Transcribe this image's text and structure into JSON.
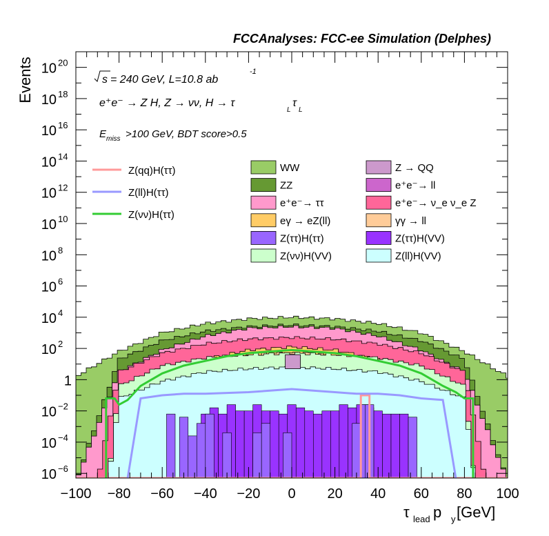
{
  "chart_data": {
    "type": "stacked-histogram",
    "title": "FCCAnalyses: FCC-ee Simulation (Delphes)",
    "annotations": {
      "energy_lumi_prefix": "s",
      "energy_lumi": " = 240 GeV, L=10.8 ab",
      "lumi_exponent": "-1",
      "process_line": "e⁺e⁻ → Z H, Z → νν, H → τ",
      "process_sub1": "L",
      "process_tau2": "τ",
      "process_sub2": "L",
      "cut_E": "E",
      "cut_sub": "miss",
      "cut_rest": ">100 GeV, BDT score>0.5"
    },
    "xlabel_main": "τ",
    "xlabel_sub": "lead",
    "xlabel_rest": " p",
    "xlabel_sub2": "y",
    "xlabel_unit": " [GeV]",
    "ylabel": "Events",
    "xlim": [
      -100,
      100
    ],
    "ylim_log10": [
      -6.3,
      21
    ],
    "log_y": true,
    "x_ticks": [
      -100,
      -80,
      -60,
      -40,
      -20,
      0,
      20,
      40,
      60,
      80,
      100
    ],
    "x_tick_labels": [
      "−100",
      "−80",
      "−60",
      "−40",
      "−20",
      "0",
      "20",
      "40",
      "60",
      "80",
      "100"
    ],
    "y_ticks": [
      {
        "exp": -6,
        "base": "10",
        "sup": "−6"
      },
      {
        "exp": -4,
        "base": "10",
        "sup": "−4"
      },
      {
        "exp": -2,
        "base": "10",
        "sup": "−2"
      },
      {
        "exp": 0,
        "base": "1",
        "sup": ""
      },
      {
        "exp": 2,
        "base": "10",
        "sup": "2"
      },
      {
        "exp": 4,
        "base": "10",
        "sup": "4"
      },
      {
        "exp": 6,
        "base": "10",
        "sup": "6"
      },
      {
        "exp": 8,
        "base": "10",
        "sup": "8"
      },
      {
        "exp": 10,
        "base": "10",
        "sup": "10"
      },
      {
        "exp": 12,
        "base": "10",
        "sup": "12"
      },
      {
        "exp": 14,
        "base": "10",
        "sup": "14"
      },
      {
        "exp": 16,
        "base": "10",
        "sup": "16"
      },
      {
        "exp": 18,
        "base": "10",
        "sup": "18"
      },
      {
        "exp": 20,
        "base": "10",
        "sup": "20"
      }
    ],
    "stack_layers": [
      {
        "name": "WW",
        "color": "#99cc66",
        "x": [
          -100,
          -80,
          -60,
          -40,
          -20,
          0,
          20,
          40,
          60,
          80,
          100
        ],
        "log10": [
          0.2,
          1.8,
          3.0,
          3.6,
          3.9,
          4.0,
          3.9,
          3.6,
          3.0,
          1.8,
          0.2
        ]
      },
      {
        "name": "ZZ",
        "color": "#669933",
        "x": [
          -100,
          -80,
          -60,
          -40,
          -20,
          0,
          20,
          40,
          60,
          80,
          100
        ],
        "log10": [
          -6.5,
          1.3,
          2.5,
          3.1,
          3.4,
          3.5,
          3.4,
          3.1,
          2.5,
          1.3,
          -6.5
        ]
      },
      {
        "name": "e⁺e⁻→ ττ",
        "color": "#ff99cc",
        "x": [
          -100,
          -80,
          -60,
          -40,
          -20,
          0,
          20,
          40,
          60,
          80,
          100
        ],
        "log10": [
          -6.5,
          0.5,
          1.9,
          2.8,
          3.3,
          3.4,
          3.3,
          2.8,
          1.9,
          0.5,
          -6.5
        ]
      },
      {
        "name": "e⁺e⁻→ ν_e ν_e Z",
        "color": "#ff6699",
        "x": [
          -90,
          -80,
          -60,
          -40,
          -20,
          0,
          20,
          40,
          60,
          80,
          90
        ],
        "log10": [
          -6.5,
          0.5,
          1.7,
          2.3,
          2.6,
          2.7,
          2.6,
          2.3,
          1.7,
          0.5,
          -6.5
        ]
      },
      {
        "name": "eγ → eZ(ll)",
        "color": "#ffcc66",
        "x": [
          -60,
          -40,
          -20,
          0,
          20,
          40,
          60
        ],
        "log10": [
          -6.5,
          1.3,
          1.9,
          2.1,
          1.9,
          1.3,
          -6.5
        ]
      },
      {
        "name": "γγ → ll",
        "color": "#ffcc99",
        "x": [
          -50,
          -30,
          -10,
          0,
          10,
          30,
          50
        ],
        "log10": [
          -6.5,
          1.3,
          1.7,
          1.7,
          1.7,
          1.3,
          -6.5
        ]
      },
      {
        "name": "Z(νν)H(VV)",
        "color": "#ccffcc",
        "x": [
          -85,
          -80,
          -60,
          -40,
          -20,
          0,
          20,
          40,
          60,
          80,
          85
        ],
        "log10": [
          -6.5,
          -0.4,
          0.9,
          1.4,
          1.6,
          1.7,
          1.6,
          1.4,
          0.9,
          -0.4,
          -6.5
        ]
      },
      {
        "name": "Z(ll)H(VV)",
        "color": "#ccffff",
        "x": [
          -85,
          -80,
          -60,
          -40,
          -20,
          0,
          20,
          40,
          60,
          80,
          85
        ],
        "log10": [
          -6.5,
          -1.2,
          -0.1,
          0.5,
          0.7,
          0.8,
          0.7,
          0.5,
          -0.1,
          -1.2,
          -6.5
        ]
      }
    ],
    "zqq_bar": {
      "name": "Z → QQ",
      "color": "#cc99cc",
      "x0": -3,
      "x1": 4,
      "log10_top": 1.6,
      "log10_bottom": 0.7
    },
    "ztautau_vv_bars": {
      "name": "Z(ττ)H(VV)",
      "color": "#9933ff",
      "bars": [
        [
          -42,
          -38,
          -2.2
        ],
        [
          -38,
          -34,
          -1.8
        ],
        [
          -34,
          -30,
          -2.2
        ],
        [
          -30,
          -26,
          -1.6
        ],
        [
          -26,
          -22,
          -2.0
        ],
        [
          -22,
          -18,
          -2.0
        ],
        [
          -18,
          -14,
          -1.6
        ],
        [
          -14,
          -10,
          -2.0
        ],
        [
          -10,
          -6,
          -2.0
        ],
        [
          -6,
          -2,
          -2.2
        ],
        [
          -2,
          2,
          -1.6
        ],
        [
          2,
          6,
          -1.8
        ],
        [
          6,
          10,
          -2.0
        ],
        [
          10,
          14,
          -2.2
        ],
        [
          14,
          18,
          -2.0
        ],
        [
          18,
          22,
          -2.0
        ],
        [
          22,
          26,
          -1.6
        ],
        [
          26,
          30,
          -1.8
        ],
        [
          30,
          34,
          -1.6
        ],
        [
          34,
          38,
          -1.8
        ],
        [
          38,
          42,
          -2.0
        ],
        [
          42,
          46,
          -2.2
        ],
        [
          46,
          50,
          -2.2
        ],
        [
          50,
          54,
          -2.2
        ]
      ]
    },
    "ztautau_tt_bars": {
      "name": "Z(ττ)H(ττ)",
      "color": "#9966ff",
      "bars": [
        [
          -58,
          -54,
          -2.2
        ],
        [
          -52,
          -48,
          -2.4
        ],
        [
          -48,
          -44,
          -3.6
        ],
        [
          -44,
          -40,
          -2.8
        ],
        [
          -40,
          -36,
          -2.2
        ],
        [
          -32,
          -28,
          -3.4
        ],
        [
          -18,
          -14,
          -3.4
        ],
        [
          -14,
          -10,
          -2.8
        ],
        [
          -4,
          0,
          -3.4
        ],
        [
          28,
          32,
          -2.8
        ],
        [
          32,
          36,
          -1.6
        ],
        [
          34,
          38,
          -1.6
        ],
        [
          54,
          58,
          -2.4
        ]
      ]
    },
    "lines": [
      {
        "name": "Z(qq)H(ττ)",
        "color": "#ff9999",
        "x": [
          -100,
          32,
          32,
          36,
          36,
          100
        ],
        "log10": [
          -6.5,
          -6.5,
          -1.0,
          -1.0,
          -6.5,
          -6.5
        ]
      },
      {
        "name": "Z(ll)H(ττ)",
        "color": "#9999ff",
        "x": [
          -76,
          -70,
          -60,
          -50,
          -40,
          -20,
          0,
          20,
          30,
          40,
          50,
          60,
          70,
          76
        ],
        "log10": [
          -6.5,
          -1.2,
          -1.0,
          -0.9,
          -0.9,
          -0.8,
          -0.6,
          -0.8,
          -0.9,
          -0.9,
          -1.0,
          -1.2,
          -1.3,
          -6.5
        ]
      },
      {
        "name": "Z(νν)H(ττ)",
        "color": "#33cc33",
        "x": [
          -86,
          -86,
          -82,
          -80,
          -76,
          -70,
          -60,
          -50,
          -40,
          -30,
          -20,
          -10,
          0,
          10,
          20,
          30,
          40,
          50,
          60,
          70,
          76,
          80,
          84,
          84
        ],
        "log10": [
          -6.5,
          -1.2,
          -1.2,
          -1.6,
          -1.3,
          -0.4,
          0.4,
          0.9,
          1.2,
          1.5,
          1.7,
          1.8,
          1.9,
          1.8,
          1.7,
          1.5,
          1.2,
          0.9,
          0.4,
          -0.4,
          -0.8,
          -1.2,
          -1.2,
          -6.5
        ]
      }
    ],
    "legend": {
      "line_entries": [
        "Z(qq)H(ττ)",
        "Z(ll)H(ττ)",
        "Z(νν)H(ττ)"
      ],
      "fill_left": [
        "WW",
        "ZZ",
        "e⁺e⁻→ ττ",
        "eγ → eZ(ll)",
        "Z(ττ)H(ττ)",
        "Z(νν)H(VV)"
      ],
      "fill_right": [
        "Z → QQ",
        "e⁺e⁻→ ll",
        "e⁺e⁻→ ν_e ν_e Z",
        "γγ → ll",
        "Z(ττ)H(VV)",
        "Z(ll)H(VV)"
      ],
      "fill_left_colors": [
        "#99cc66",
        "#669933",
        "#ff99cc",
        "#ffcc66",
        "#9966ff",
        "#ccffcc"
      ],
      "fill_right_colors": [
        "#cc99cc",
        "#cc66cc",
        "#ff6699",
        "#ffcc99",
        "#9933ff",
        "#ccffff"
      ],
      "placement": "top"
    }
  }
}
